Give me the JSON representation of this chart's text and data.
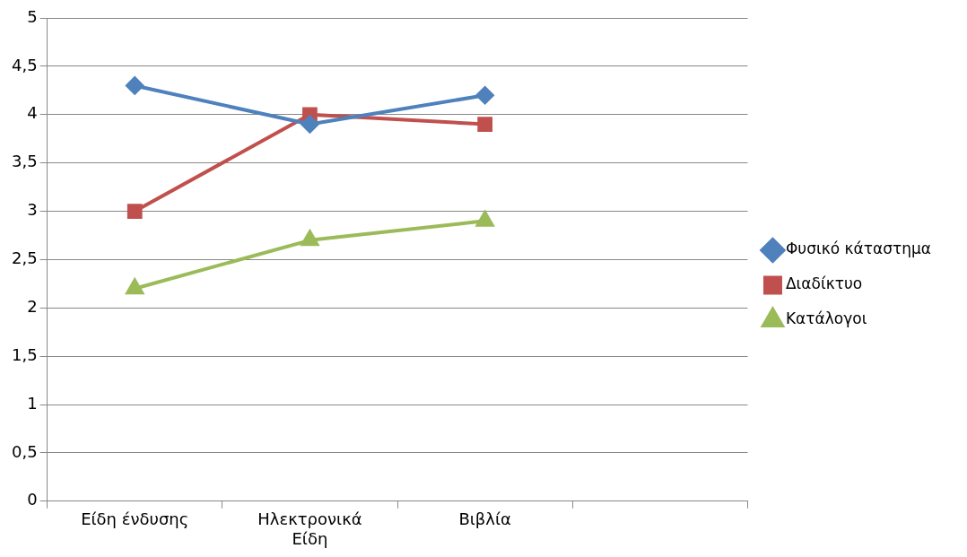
{
  "chart_data": {
    "type": "line",
    "categories": [
      "Είδη ένδυσης",
      "Ηλεκτρονικά Είδη",
      "Βιβλία",
      null
    ],
    "series": [
      {
        "name": "Φυσικό κάταστημα",
        "color": "#4f81bd",
        "marker": "diamond",
        "values": [
          4.3,
          3.9,
          4.2,
          null
        ]
      },
      {
        "name": "Διαδίκτυο",
        "color": "#c0504d",
        "marker": "square",
        "values": [
          3.0,
          4.0,
          3.9,
          null
        ]
      },
      {
        "name": "Κατάλογοι",
        "color": "#9bbb59",
        "marker": "triangle",
        "values": [
          2.2,
          2.7,
          2.9,
          null
        ]
      }
    ],
    "ylim": [
      0,
      5
    ],
    "yticks": [
      0,
      {
        "value": 0.5,
        "label": "0,5"
      },
      1,
      {
        "value": 1.5,
        "label": "1,5"
      },
      2,
      {
        "value": 2.5,
        "label": "2,5"
      },
      3,
      {
        "value": 3.5,
        "label": "3,5"
      },
      4,
      {
        "value": 4.5,
        "label": "4,5"
      },
      5
    ],
    "grid": "y",
    "legend": "right"
  }
}
